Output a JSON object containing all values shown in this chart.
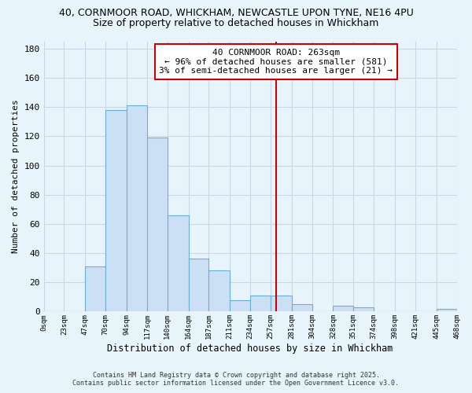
{
  "title_line1": "40, CORNMOOR ROAD, WHICKHAM, NEWCASTLE UPON TYNE, NE16 4PU",
  "title_line2": "Size of property relative to detached houses in Whickham",
  "xlabel": "Distribution of detached houses by size in Whickham",
  "ylabel": "Number of detached properties",
  "bar_edges": [
    0,
    23,
    47,
    70,
    94,
    117,
    140,
    164,
    187,
    211,
    234,
    257,
    281,
    304,
    328,
    351,
    374,
    398,
    421,
    445,
    468
  ],
  "bar_heights": [
    0,
    0,
    31,
    138,
    141,
    119,
    66,
    36,
    28,
    8,
    11,
    11,
    5,
    0,
    4,
    3,
    0,
    0,
    0,
    2
  ],
  "bar_color": "#cce0f5",
  "bar_edgecolor": "#6aaed6",
  "vline_x": 263,
  "vline_color": "#cc0000",
  "annotation_text": "40 CORNMOOR ROAD: 263sqm\n← 96% of detached houses are smaller (581)\n3% of semi-detached houses are larger (21) →",
  "annotation_box_facecolor": "#ffffff",
  "annotation_box_edgecolor": "#cc0000",
  "ylim": [
    0,
    185
  ],
  "yticks": [
    0,
    20,
    40,
    60,
    80,
    100,
    120,
    140,
    160,
    180
  ],
  "xtick_labels": [
    "0sqm",
    "23sqm",
    "47sqm",
    "70sqm",
    "94sqm",
    "117sqm",
    "140sqm",
    "164sqm",
    "187sqm",
    "211sqm",
    "234sqm",
    "257sqm",
    "281sqm",
    "304sqm",
    "328sqm",
    "351sqm",
    "374sqm",
    "398sqm",
    "421sqm",
    "445sqm",
    "468sqm"
  ],
  "grid_color": "#c8d8e8",
  "background_color": "#e8f4fb",
  "footer_text": "Contains HM Land Registry data © Crown copyright and database right 2025.\nContains public sector information licensed under the Open Government Licence v3.0.",
  "title_fontsize": 9,
  "subtitle_fontsize": 9,
  "footer_fontsize": 6,
  "ylabel_fontsize": 8,
  "xlabel_fontsize": 8.5
}
